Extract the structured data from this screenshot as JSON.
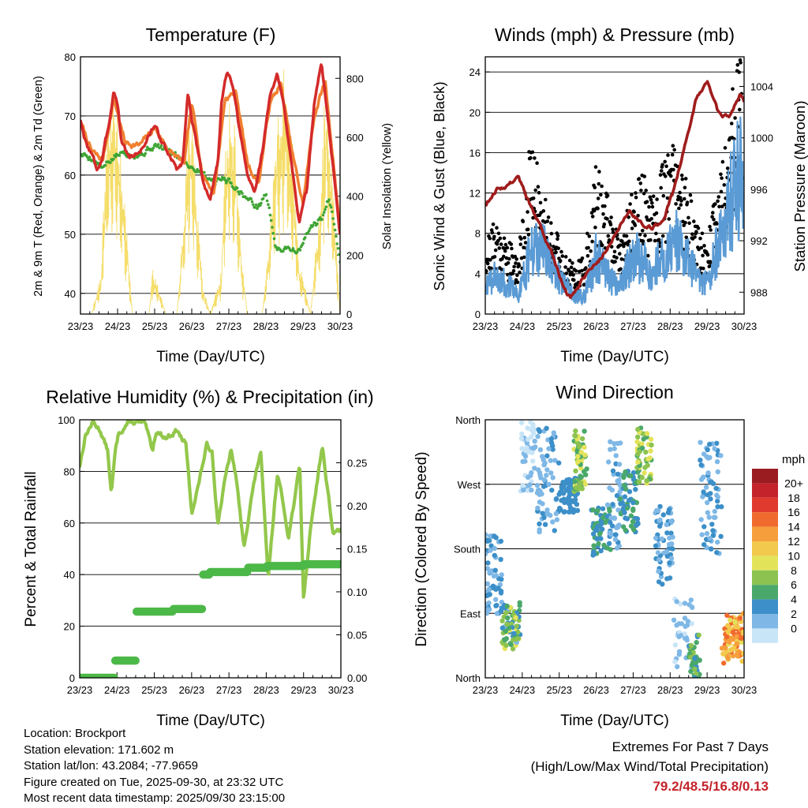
{
  "x_tick_labels": [
    "23/23",
    "24/23",
    "25/23",
    "26/23",
    "27/23",
    "28/23",
    "29/23",
    "30/23"
  ],
  "x_axis_label": "Time (Day/UTC)",
  "colors": {
    "temp_2m": "#d42a2a",
    "temp_9m": "#f08030",
    "dewpoint": "#3fa535",
    "solar": "#f5dd6a",
    "gust": "#000000",
    "sonic_wind": "#5b9bd5",
    "pressure": "#a01c1c",
    "rh": "#93c74b",
    "rain": "#4cb848"
  },
  "chart_data": [
    {
      "id": "temperature",
      "type": "line",
      "title": "Temperature (F)",
      "xlabel": "Time (Day/UTC)",
      "ylabel": "2m & 9m T (Red, Orange) & 2m Td (Green)",
      "ylabel_right": "Solar Insolation (Yellow)",
      "xlim": [
        0,
        7
      ],
      "ylim": [
        36.5,
        80
      ],
      "yticks": [
        40,
        50,
        60,
        70,
        80
      ],
      "ylim_right": [
        0,
        873
      ],
      "yticks_right": [
        0,
        200,
        400,
        600,
        800
      ],
      "series": [
        {
          "name": "2m T",
          "color": "#d42a2a",
          "x": [
            0,
            0.1,
            0.3,
            0.45,
            0.6,
            0.75,
            0.9,
            1.0,
            1.1,
            1.3,
            1.6,
            1.8,
            2.0,
            2.1,
            2.25,
            2.4,
            2.6,
            2.75,
            2.9,
            3.1,
            3.3,
            3.5,
            3.7,
            3.8,
            3.95,
            4.1,
            4.3,
            4.5,
            4.7,
            4.9,
            5.1,
            5.3,
            5.5,
            5.7,
            5.9,
            6.1,
            6.3,
            6.5,
            6.7,
            6.9,
            7.0
          ],
          "values": [
            69.5,
            66,
            63.5,
            61,
            63,
            68,
            74.5,
            72,
            66,
            63,
            64,
            66,
            68.5,
            67,
            65,
            63,
            61,
            62,
            74,
            66,
            59,
            56,
            62,
            72,
            77.5,
            75,
            67,
            60,
            57,
            64,
            73,
            77,
            71,
            62,
            52,
            57,
            72,
            79,
            68,
            56,
            50
          ]
        },
        {
          "name": "9m T",
          "color": "#f08030",
          "x": [
            0,
            0.3,
            0.6,
            0.9,
            1.2,
            1.6,
            2.0,
            2.4,
            2.8,
            3.0,
            3.3,
            3.6,
            3.9,
            4.2,
            4.5,
            4.8,
            5.1,
            5.4,
            5.7,
            6.0,
            6.3,
            6.6,
            6.9,
            7.0
          ],
          "values": [
            69,
            64,
            62.5,
            73,
            65.5,
            65,
            68,
            64,
            62,
            72,
            60,
            57,
            73,
            74,
            62,
            58.5,
            72,
            75.5,
            64,
            55,
            70,
            76,
            57,
            51
          ]
        },
        {
          "name": "2m Td",
          "color": "#3fa535",
          "x": [
            0,
            0.3,
            0.6,
            0.9,
            1.2,
            1.6,
            2.0,
            2.4,
            2.7,
            3.0,
            3.3,
            3.6,
            3.9,
            4.2,
            4.5,
            4.8,
            5.0,
            5.3,
            5.6,
            5.9,
            6.2,
            6.5,
            6.7,
            6.85,
            7.0
          ],
          "values": [
            63.5,
            63,
            61,
            63,
            64,
            63.5,
            65,
            64,
            63,
            61.5,
            60.5,
            59,
            59.5,
            58,
            56,
            54.5,
            57,
            47,
            48,
            47,
            51,
            52.5,
            56,
            52,
            46
          ]
        },
        {
          "name": "Solar Insolation",
          "color": "#f5dd6a",
          "axis": "right",
          "x": [
            0.3,
            0.55,
            0.7,
            0.8,
            0.9,
            1.0,
            1.25,
            1.4,
            1.85,
            1.95,
            2.05,
            2.15,
            2.3,
            2.6,
            2.8,
            2.9,
            3.0,
            3.1,
            3.3,
            3.5,
            3.8,
            3.9,
            4.05,
            4.2,
            4.3,
            4.5,
            4.9,
            5.1,
            5.3,
            5.5,
            5.7,
            5.9,
            6.2,
            6.5,
            6.6,
            6.7,
            6.9,
            7.0
          ],
          "values": [
            0,
            150,
            650,
            780,
            880,
            750,
            300,
            0,
            0,
            180,
            120,
            80,
            0,
            0,
            400,
            740,
            800,
            500,
            100,
            0,
            150,
            600,
            750,
            650,
            300,
            0,
            0,
            300,
            700,
            880,
            650,
            200,
            0,
            500,
            850,
            720,
            250,
            0
          ]
        }
      ]
    },
    {
      "id": "winds",
      "type": "scatter",
      "title": "Winds (mph) & Pressure (mb)",
      "xlabel": "Time (Day/UTC)",
      "ylabel": "Sonic Wind & Gust (Blue, Black)",
      "ylabel_right": "Station Pressure (Maroon)",
      "xlim": [
        0,
        7
      ],
      "ylim": [
        0,
        25.5
      ],
      "yticks": [
        0,
        4,
        8,
        12,
        16,
        20,
        24
      ],
      "ylim_right": [
        986.3,
        1006.3
      ],
      "yticks_right": [
        988,
        992,
        996,
        1000,
        1004
      ],
      "series": [
        {
          "name": "Sonic Wind",
          "color": "#5b9bd5",
          "x": [
            0,
            0.3,
            0.6,
            0.9,
            1.2,
            1.5,
            1.8,
            2.1,
            2.4,
            2.7,
            3.0,
            3.3,
            3.6,
            3.9,
            4.2,
            4.5,
            4.8,
            5.1,
            5.4,
            5.7,
            6.0,
            6.3,
            6.6,
            6.9,
            7.0
          ],
          "values": [
            3,
            4,
            3,
            2,
            6,
            7,
            5,
            3,
            2,
            2,
            6,
            4,
            3,
            5,
            6,
            4,
            6,
            8,
            6,
            4,
            3,
            7,
            11,
            15,
            10
          ]
        },
        {
          "name": "Gust",
          "color": "#000000",
          "x": [
            0,
            0.3,
            0.6,
            0.9,
            1.2,
            1.5,
            1.8,
            2.1,
            2.4,
            2.7,
            3.0,
            3.3,
            3.6,
            3.9,
            4.2,
            4.5,
            4.8,
            5.1,
            5.4,
            5.7,
            6.0,
            6.3,
            6.6,
            6.9,
            7.0
          ],
          "values": [
            6,
            8,
            6,
            5,
            14,
            11,
            8,
            5,
            4,
            5,
            12,
            10,
            6,
            9,
            12,
            9,
            12,
            15,
            11,
            8,
            6,
            11,
            16,
            23,
            15
          ]
        },
        {
          "name": "Station Pressure",
          "color": "#a01c1c",
          "axis": "right",
          "x": [
            0,
            0.3,
            0.6,
            0.9,
            1.1,
            1.5,
            1.8,
            2.1,
            2.3,
            2.6,
            3.0,
            3.3,
            3.6,
            3.9,
            4.2,
            4.5,
            4.8,
            5.1,
            5.4,
            5.7,
            6.0,
            6.3,
            6.6,
            6.9,
            7.0
          ],
          "values": [
            994.8,
            996,
            996.3,
            997,
            995.5,
            993,
            991,
            988.5,
            987.5,
            989,
            990.3,
            991.3,
            993,
            994.3,
            993.5,
            993,
            993.5,
            996,
            999.5,
            1003,
            1004.5,
            1002,
            1001.5,
            1003.5,
            1002.8
          ]
        }
      ]
    },
    {
      "id": "humidity",
      "type": "line",
      "title": "Relative Humidity (%) & Precipitation (in)",
      "xlabel": "Time (Day/UTC)",
      "ylabel": "Percent & Total Rainfall",
      "xlim": [
        0,
        7
      ],
      "ylim": [
        0,
        100
      ],
      "yticks": [
        0,
        20,
        40,
        60,
        80,
        100
      ],
      "ylim_right": [
        0,
        0.3
      ],
      "yticks_right": [
        "0.00",
        "0.05",
        "0.10",
        "0.15",
        "0.20",
        "0.25"
      ],
      "series": [
        {
          "name": "Relative Humidity",
          "color": "#93c74b",
          "x": [
            0,
            0.15,
            0.35,
            0.55,
            0.75,
            0.85,
            0.95,
            1.05,
            1.3,
            1.55,
            1.75,
            1.95,
            2.05,
            2.3,
            2.6,
            2.85,
            3.0,
            3.2,
            3.4,
            3.55,
            3.7,
            3.9,
            4.05,
            4.2,
            4.4,
            4.6,
            4.85,
            5.05,
            5.3,
            5.6,
            5.9,
            6.0,
            6.2,
            6.5,
            6.8,
            7.0
          ],
          "values": [
            82,
            94,
            99,
            96,
            88,
            71,
            87,
            95,
            99,
            99,
            98,
            88,
            96,
            93,
            96,
            90,
            64,
            76,
            90,
            88,
            60,
            77,
            88,
            77,
            50,
            70,
            88,
            38,
            80,
            55,
            82,
            30,
            60,
            90,
            55,
            58
          ]
        },
        {
          "name": "Total Rainfall",
          "color": "#4cb848",
          "axis": "right",
          "step": true,
          "x": [
            0,
            0.75,
            0.95,
            1.2,
            1.5,
            2.0,
            2.5,
            2.75,
            3.3,
            3.5,
            4.5,
            5.0,
            6.0,
            7.0
          ],
          "values": [
            0.0,
            0.0,
            0.02,
            0.02,
            0.077,
            0.077,
            0.08,
            0.08,
            0.12,
            0.123,
            0.128,
            0.13,
            0.132,
            0.132
          ]
        }
      ]
    },
    {
      "id": "wind_direction",
      "type": "scatter",
      "title": "Wind Direction",
      "xlabel": "Time (Day/UTC)",
      "ylabel": "Direction (Colored By Speed)",
      "xlim": [
        0,
        7
      ],
      "ylim": [
        0,
        360
      ],
      "ytick_values": [
        0,
        90,
        180,
        270,
        360
      ],
      "ytick_labels": [
        "North",
        "East",
        "South",
        "West",
        "North"
      ],
      "colorbar_title": "mph",
      "colorbar_labels": [
        "20+",
        "18",
        "16",
        "14",
        "12",
        "10",
        "8",
        "6",
        "4",
        "2",
        "0"
      ],
      "colorbar_colors": [
        "#9b1c20",
        "#c4232b",
        "#e03a2f",
        "#f06a2e",
        "#f79e3c",
        "#f2c94c",
        "#e3e35a",
        "#8cc350",
        "#4aa86a",
        "#3c8fc8",
        "#7fb8e6",
        "#c8e5f7"
      ],
      "clusters": [
        {
          "x_range": [
            0.0,
            0.45
          ],
          "dir_range": [
            85,
            200
          ],
          "speed_range": [
            2,
            4
          ],
          "n": 60
        },
        {
          "x_range": [
            0.45,
            0.95
          ],
          "dir_range": [
            40,
            105
          ],
          "speed_range": [
            2,
            10
          ],
          "n": 70
        },
        {
          "x_range": [
            0.95,
            1.35
          ],
          "dir_range": [
            260,
            360
          ],
          "speed_range": [
            0,
            2
          ],
          "n": 50
        },
        {
          "x_range": [
            1.4,
            2.0
          ],
          "dir_range": [
            200,
            350
          ],
          "speed_range": [
            1,
            4
          ],
          "n": 70
        },
        {
          "x_range": [
            2.0,
            2.5
          ],
          "dir_range": [
            230,
            280
          ],
          "speed_range": [
            3,
            5
          ],
          "n": 60
        },
        {
          "x_range": [
            2.4,
            2.75
          ],
          "dir_range": [
            260,
            345
          ],
          "speed_range": [
            5,
            11
          ],
          "n": 60
        },
        {
          "x_range": [
            2.85,
            3.4
          ],
          "dir_range": [
            170,
            240
          ],
          "speed_range": [
            3,
            6
          ],
          "n": 60
        },
        {
          "x_range": [
            3.3,
            3.7
          ],
          "dir_range": [
            180,
            330
          ],
          "speed_range": [
            1,
            4
          ],
          "n": 50
        },
        {
          "x_range": [
            3.65,
            4.15
          ],
          "dir_range": [
            200,
            290
          ],
          "speed_range": [
            3,
            7
          ],
          "n": 60
        },
        {
          "x_range": [
            4.1,
            4.5
          ],
          "dir_range": [
            270,
            350
          ],
          "speed_range": [
            6,
            11
          ],
          "n": 50
        },
        {
          "x_range": [
            4.6,
            5.1
          ],
          "dir_range": [
            130,
            240
          ],
          "speed_range": [
            2,
            4
          ],
          "n": 60
        },
        {
          "x_range": [
            5.1,
            5.6
          ],
          "dir_range": [
            10,
            110
          ],
          "speed_range": [
            0,
            3
          ],
          "n": 40
        },
        {
          "x_range": [
            5.5,
            5.8
          ],
          "dir_range": [
            0,
            60
          ],
          "speed_range": [
            4,
            8
          ],
          "n": 40
        },
        {
          "x_range": [
            5.8,
            6.4
          ],
          "dir_range": [
            170,
            330
          ],
          "speed_range": [
            1,
            4
          ],
          "n": 70
        },
        {
          "x_range": [
            6.4,
            7.0
          ],
          "dir_range": [
            20,
            90
          ],
          "speed_range": [
            10,
            17
          ],
          "n": 90
        }
      ]
    }
  ],
  "station": {
    "location": "Location: Brockport",
    "elevation": "Station elevation: 171.602 m",
    "latlon": "Station lat/lon: 43.2084; -77.9659",
    "created": "Figure created on Tue, 2025-09-30, at 23:32 UTC",
    "latest": "Most recent data timestamp: 2025/09/30 23:15:00"
  },
  "extremes": {
    "title": "Extremes For Past 7 Days",
    "subtitle": "(High/Low/Max Wind/Total Precipitation)",
    "values": "79.2/48.5/16.8/0.13"
  }
}
